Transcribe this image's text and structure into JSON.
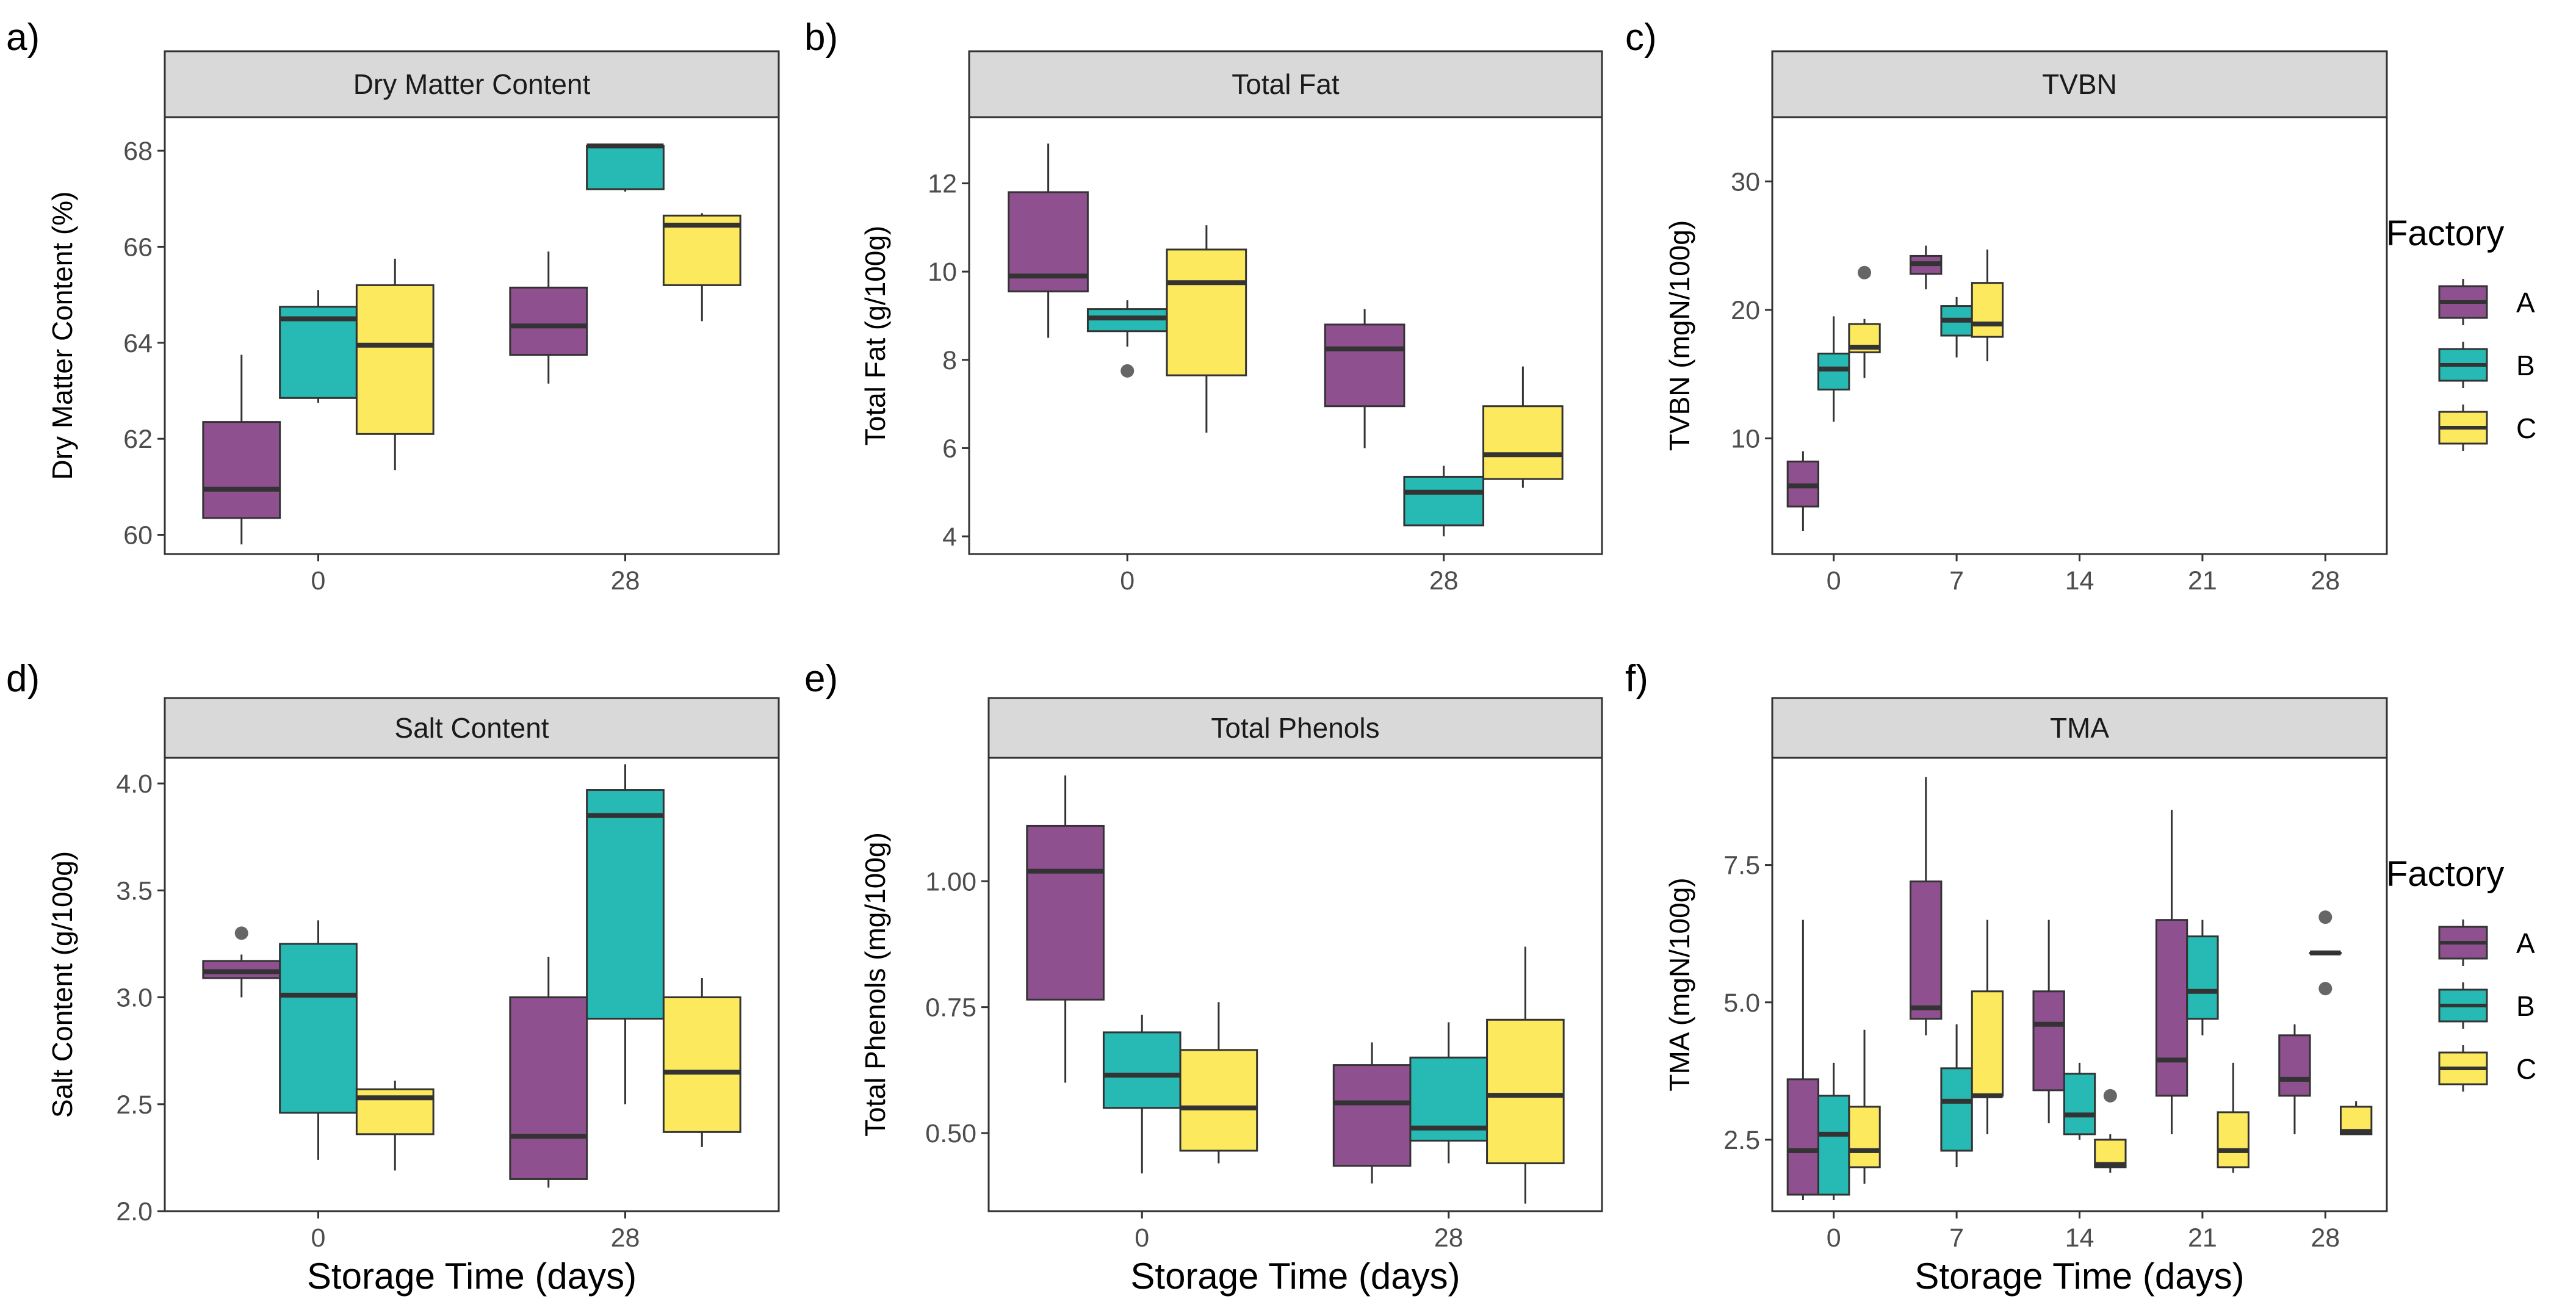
{
  "colors": {
    "A": "#8f5090",
    "B": "#27b9b3",
    "C": "#fde95e"
  },
  "legend": {
    "title": "Factory",
    "items": [
      {
        "key": "A",
        "label": "A"
      },
      {
        "key": "B",
        "label": "B"
      },
      {
        "key": "C",
        "label": "C"
      }
    ]
  },
  "chart_data": [
    {
      "type": "box",
      "panel_label": "a)",
      "title": "Dry Matter Content",
      "ylabel": "Dry Matter Content (%)",
      "xlabel": "",
      "categories": [
        "0",
        "28"
      ],
      "ylim": [
        59.6,
        68.7
      ],
      "yticks": [
        60,
        62,
        64,
        66,
        68
      ],
      "ytick_labels": [
        "60",
        "62",
        "64",
        "66",
        "68"
      ],
      "boxes": [
        {
          "x": "0",
          "factory": "A",
          "min": 59.8,
          "q1": 60.35,
          "median": 60.95,
          "q3": 62.35,
          "max": 63.75,
          "outliers": []
        },
        {
          "x": "0",
          "factory": "B",
          "min": 62.75,
          "q1": 62.85,
          "median": 64.5,
          "q3": 64.75,
          "max": 65.1,
          "outliers": []
        },
        {
          "x": "0",
          "factory": "C",
          "min": 61.35,
          "q1": 62.1,
          "median": 63.95,
          "q3": 65.2,
          "max": 65.75,
          "outliers": []
        },
        {
          "x": "28",
          "factory": "A",
          "min": 63.15,
          "q1": 63.75,
          "median": 64.35,
          "q3": 65.15,
          "max": 65.9,
          "outliers": []
        },
        {
          "x": "28",
          "factory": "B",
          "min": 67.15,
          "q1": 67.2,
          "median": 68.1,
          "q3": 68.1,
          "max": 68.1,
          "outliers": []
        },
        {
          "x": "28",
          "factory": "C",
          "min": 64.45,
          "q1": 65.2,
          "median": 66.45,
          "q3": 66.65,
          "max": 66.7,
          "outliers": []
        }
      ]
    },
    {
      "type": "box",
      "panel_label": "b)",
      "title": "Total Fat",
      "ylabel": "Total Fat (g/100g)",
      "xlabel": "",
      "categories": [
        "0",
        "28"
      ],
      "ylim": [
        3.6,
        13.5
      ],
      "yticks": [
        4,
        6,
        8,
        10,
        12
      ],
      "ytick_labels": [
        "4",
        "6",
        "8",
        "10",
        "12"
      ],
      "boxes": [
        {
          "x": "0",
          "factory": "A",
          "min": 8.5,
          "q1": 9.55,
          "median": 9.9,
          "q3": 11.8,
          "max": 12.9,
          "outliers": []
        },
        {
          "x": "0",
          "factory": "B",
          "min": 8.3,
          "q1": 8.65,
          "median": 8.95,
          "q3": 9.15,
          "max": 9.35,
          "outliers": [
            7.75
          ]
        },
        {
          "x": "0",
          "factory": "C",
          "min": 6.35,
          "q1": 7.65,
          "median": 9.75,
          "q3": 10.5,
          "max": 11.05,
          "outliers": []
        },
        {
          "x": "28",
          "factory": "A",
          "min": 6.0,
          "q1": 6.95,
          "median": 8.25,
          "q3": 8.8,
          "max": 9.15,
          "outliers": []
        },
        {
          "x": "28",
          "factory": "B",
          "min": 4.0,
          "q1": 4.25,
          "median": 5.0,
          "q3": 5.35,
          "max": 5.6,
          "outliers": []
        },
        {
          "x": "28",
          "factory": "C",
          "min": 5.1,
          "q1": 5.3,
          "median": 5.85,
          "q3": 6.95,
          "max": 7.85,
          "outliers": []
        }
      ]
    },
    {
      "type": "box",
      "panel_label": "c)",
      "title": "TVBN",
      "ylabel": "TVBN (mgN/100g)",
      "xlabel": "",
      "categories": [
        "0",
        "7",
        "14",
        "21",
        "28"
      ],
      "ylim": [
        1.0,
        35.0
      ],
      "yticks": [
        10,
        20,
        30
      ],
      "ytick_labels": [
        "10",
        "20",
        "30"
      ],
      "boxes": [
        {
          "x": "0",
          "factory": "A",
          "min": 2.8,
          "q1": 4.7,
          "median": 6.3,
          "q3": 8.2,
          "max": 9.0,
          "outliers": []
        },
        {
          "x": "0",
          "factory": "B",
          "min": 11.3,
          "q1": 13.8,
          "median": 15.4,
          "q3": 16.6,
          "max": 19.5,
          "outliers": []
        },
        {
          "x": "0",
          "factory": "C",
          "min": 14.7,
          "q1": 16.7,
          "median": 17.1,
          "q3": 18.9,
          "max": 19.3,
          "outliers": [
            22.9
          ]
        },
        {
          "x": "7",
          "factory": "A",
          "min": 21.6,
          "q1": 22.8,
          "median": 23.6,
          "q3": 24.2,
          "max": 25.0,
          "outliers": []
        },
        {
          "x": "7",
          "factory": "B",
          "min": 16.3,
          "q1": 18.0,
          "median": 19.2,
          "q3": 20.3,
          "max": 21.0,
          "outliers": []
        },
        {
          "x": "7",
          "factory": "C",
          "min": 16.0,
          "q1": 17.9,
          "median": 18.9,
          "q3": 22.1,
          "max": 24.7,
          "outliers": []
        }
      ]
    },
    {
      "type": "box",
      "panel_label": "d)",
      "title": "Salt Content",
      "ylabel": "Salt Content (g/100g)",
      "xlabel": "Storage Time (days)",
      "categories": [
        "0",
        "28"
      ],
      "ylim": [
        2.0,
        4.12
      ],
      "yticks": [
        2.0,
        2.5,
        3.0,
        3.5,
        4.0
      ],
      "ytick_labels": [
        "2.0",
        "2.5",
        "3.0",
        "3.5",
        "4.0"
      ],
      "boxes": [
        {
          "x": "0",
          "factory": "A",
          "min": 3.0,
          "q1": 3.09,
          "median": 3.12,
          "q3": 3.17,
          "max": 3.2,
          "outliers": [
            3.3
          ]
        },
        {
          "x": "0",
          "factory": "B",
          "min": 2.24,
          "q1": 2.46,
          "median": 3.01,
          "q3": 3.25,
          "max": 3.36,
          "outliers": []
        },
        {
          "x": "0",
          "factory": "C",
          "min": 2.19,
          "q1": 2.36,
          "median": 2.53,
          "q3": 2.57,
          "max": 2.61,
          "outliers": []
        },
        {
          "x": "28",
          "factory": "A",
          "min": 2.11,
          "q1": 2.15,
          "median": 2.35,
          "q3": 3.0,
          "max": 3.19,
          "outliers": []
        },
        {
          "x": "28",
          "factory": "B",
          "min": 2.5,
          "q1": 2.9,
          "median": 3.85,
          "q3": 3.97,
          "max": 4.09,
          "outliers": []
        },
        {
          "x": "28",
          "factory": "C",
          "min": 2.3,
          "q1": 2.37,
          "median": 2.65,
          "q3": 3.0,
          "max": 3.09,
          "outliers": []
        }
      ]
    },
    {
      "type": "box",
      "panel_label": "e)",
      "title": "Total Phenols",
      "ylabel": "Total Phenols (mg/100g)",
      "xlabel": "Storage Time (days)",
      "categories": [
        "0",
        "28"
      ],
      "ylim": [
        0.345,
        1.245
      ],
      "yticks": [
        0.5,
        0.75,
        1.0
      ],
      "ytick_labels": [
        "0.50",
        "0.75",
        "1.00"
      ],
      "boxes": [
        {
          "x": "0",
          "factory": "A",
          "min": 0.6,
          "q1": 0.765,
          "median": 1.02,
          "q3": 1.11,
          "max": 1.21,
          "outliers": []
        },
        {
          "x": "0",
          "factory": "B",
          "min": 0.42,
          "q1": 0.55,
          "median": 0.615,
          "q3": 0.7,
          "max": 0.735,
          "outliers": []
        },
        {
          "x": "0",
          "factory": "C",
          "min": 0.44,
          "q1": 0.465,
          "median": 0.55,
          "q3": 0.665,
          "max": 0.76,
          "outliers": []
        },
        {
          "x": "28",
          "factory": "A",
          "min": 0.4,
          "q1": 0.435,
          "median": 0.56,
          "q3": 0.635,
          "max": 0.68,
          "outliers": []
        },
        {
          "x": "28",
          "factory": "B",
          "min": 0.44,
          "q1": 0.485,
          "median": 0.51,
          "q3": 0.65,
          "max": 0.72,
          "outliers": []
        },
        {
          "x": "28",
          "factory": "C",
          "min": 0.36,
          "q1": 0.44,
          "median": 0.575,
          "q3": 0.725,
          "max": 0.87,
          "outliers": []
        }
      ]
    },
    {
      "type": "box",
      "panel_label": "f)",
      "title": "TMA",
      "ylabel": "TMA (mgN/100g)",
      "xlabel": "Storage Time (days)",
      "categories": [
        "0",
        "7",
        "14",
        "21",
        "28"
      ],
      "ylim": [
        1.2,
        9.45
      ],
      "yticks": [
        2.5,
        5.0,
        7.5
      ],
      "ytick_labels": [
        "2.5",
        "5.0",
        "7.5"
      ],
      "boxes": [
        {
          "x": "0",
          "factory": "A",
          "min": 1.4,
          "q1": 1.5,
          "median": 2.3,
          "q3": 3.6,
          "max": 6.5,
          "outliers": []
        },
        {
          "x": "0",
          "factory": "B",
          "min": 1.4,
          "q1": 1.5,
          "median": 2.6,
          "q3": 3.3,
          "max": 3.9,
          "outliers": []
        },
        {
          "x": "0",
          "factory": "C",
          "min": 1.7,
          "q1": 2.0,
          "median": 2.3,
          "q3": 3.1,
          "max": 4.5,
          "outliers": []
        },
        {
          "x": "7",
          "factory": "A",
          "min": 4.4,
          "q1": 4.7,
          "median": 4.9,
          "q3": 7.2,
          "max": 9.1,
          "outliers": []
        },
        {
          "x": "7",
          "factory": "B",
          "min": 2.0,
          "q1": 2.3,
          "median": 3.2,
          "q3": 3.8,
          "max": 4.6,
          "outliers": []
        },
        {
          "x": "7",
          "factory": "C",
          "min": 2.6,
          "q1": 3.3,
          "median": 3.3,
          "q3": 5.2,
          "max": 6.5,
          "outliers": []
        },
        {
          "x": "14",
          "factory": "A",
          "min": 2.8,
          "q1": 3.4,
          "median": 4.6,
          "q3": 5.2,
          "max": 6.5,
          "outliers": []
        },
        {
          "x": "14",
          "factory": "B",
          "min": 2.5,
          "q1": 2.6,
          "median": 2.95,
          "q3": 3.7,
          "max": 3.9,
          "outliers": []
        },
        {
          "x": "14",
          "factory": "C",
          "min": 1.9,
          "q1": 2.0,
          "median": 2.05,
          "q3": 2.5,
          "max": 2.6,
          "outliers": [
            3.3
          ]
        },
        {
          "x": "21",
          "factory": "A",
          "min": 2.6,
          "q1": 3.3,
          "median": 3.95,
          "q3": 6.5,
          "max": 8.5,
          "outliers": []
        },
        {
          "x": "21",
          "factory": "B",
          "min": 4.4,
          "q1": 4.7,
          "median": 5.2,
          "q3": 6.2,
          "max": 6.5,
          "outliers": []
        },
        {
          "x": "21",
          "factory": "C",
          "min": 1.9,
          "q1": 2.0,
          "median": 2.3,
          "q3": 3.0,
          "max": 3.9,
          "outliers": []
        },
        {
          "x": "28",
          "factory": "A",
          "min": 2.6,
          "q1": 3.3,
          "median": 3.6,
          "q3": 4.4,
          "max": 4.6,
          "outliers": []
        },
        {
          "x": "28",
          "factory": "B",
          "min": 5.9,
          "q1": 5.9,
          "median": 5.9,
          "q3": 5.9,
          "max": 5.9,
          "outliers": [
            6.55,
            5.25
          ]
        },
        {
          "x": "28",
          "factory": "C",
          "min": 2.6,
          "q1": 2.6,
          "median": 2.65,
          "q3": 3.1,
          "max": 3.2,
          "outliers": []
        }
      ]
    }
  ]
}
